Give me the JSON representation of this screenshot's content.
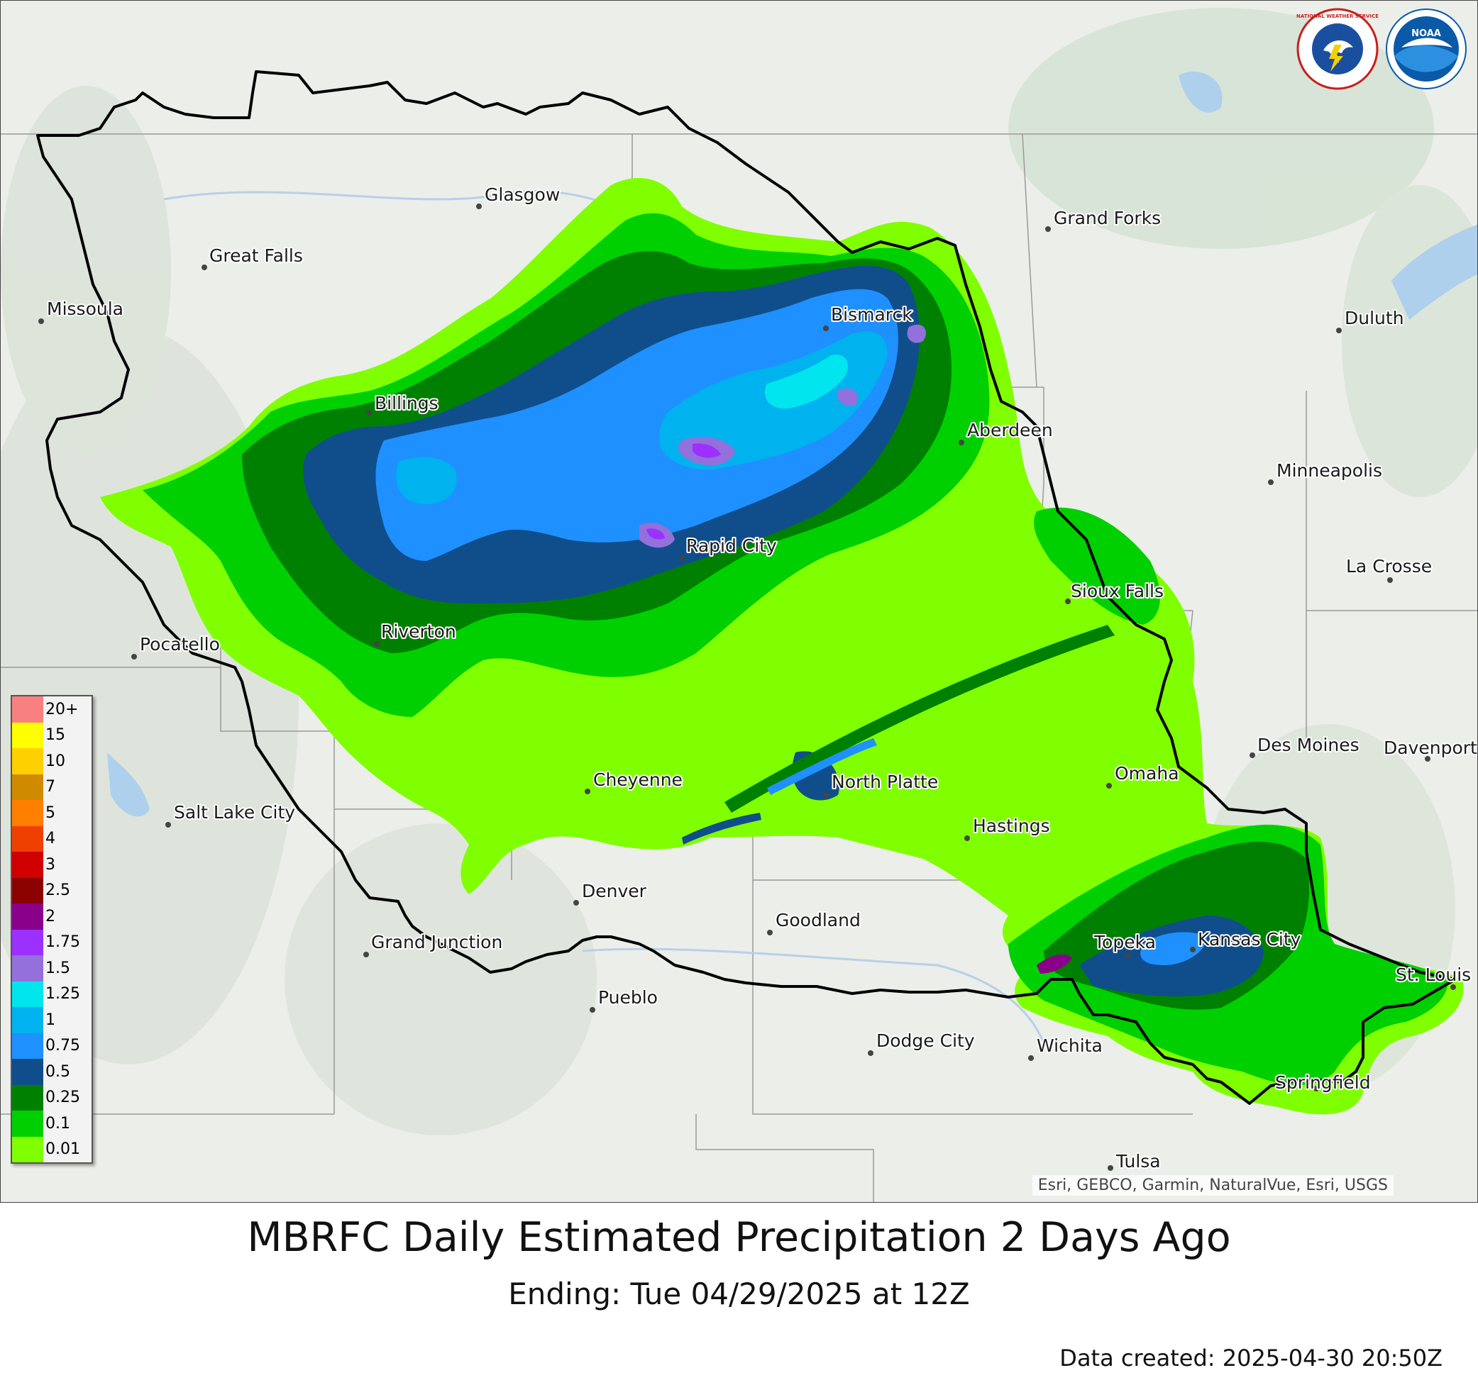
{
  "map": {
    "title": "MBRFC Daily Estimated Precipitation 2 Days Ago",
    "subtitle": "Ending: Tue 04/29/2025 at 12Z",
    "data_created": "Data created: 2025-04-30 20:50Z",
    "attribution": "Esri, GEBCO, Garmin, NaturalVue, Esri, USGS",
    "logos": [
      {
        "name": "nws-logo",
        "text": "NATIONAL WEATHER SERVICE"
      },
      {
        "name": "noaa-logo",
        "text": "NOAA"
      }
    ],
    "cities": [
      {
        "name": "Glasgow"
      },
      {
        "name": "Grand Forks"
      },
      {
        "name": "Great Falls"
      },
      {
        "name": "Missoula"
      },
      {
        "name": "Bismarck"
      },
      {
        "name": "Duluth"
      },
      {
        "name": "Billings"
      },
      {
        "name": "Aberdeen"
      },
      {
        "name": "Minneapolis"
      },
      {
        "name": "Rapid City"
      },
      {
        "name": "La Crosse"
      },
      {
        "name": "Sioux Falls"
      },
      {
        "name": "Riverton"
      },
      {
        "name": "Pocatello"
      },
      {
        "name": "Des Moines"
      },
      {
        "name": "Davenport"
      },
      {
        "name": "Cheyenne"
      },
      {
        "name": "North Platte"
      },
      {
        "name": "Omaha"
      },
      {
        "name": "Salt Lake City"
      },
      {
        "name": "Hastings"
      },
      {
        "name": "Denver"
      },
      {
        "name": "Goodland"
      },
      {
        "name": "Topeka"
      },
      {
        "name": "Kansas City"
      },
      {
        "name": "Grand Junction"
      },
      {
        "name": "St. Louis"
      },
      {
        "name": "Pueblo"
      },
      {
        "name": "Dodge City"
      },
      {
        "name": "Wichita"
      },
      {
        "name": "Springfield"
      },
      {
        "name": "Tulsa"
      }
    ],
    "legend": [
      {
        "label": "20+",
        "color": "#f88080"
      },
      {
        "label": "15",
        "color": "#ffff00"
      },
      {
        "label": "10",
        "color": "#ffd000"
      },
      {
        "label": "7",
        "color": "#d08a00"
      },
      {
        "label": "5",
        "color": "#ff7f00"
      },
      {
        "label": "4",
        "color": "#ee4000"
      },
      {
        "label": "3",
        "color": "#d00000"
      },
      {
        "label": "2.5",
        "color": "#8b0000"
      },
      {
        "label": "2",
        "color": "#8b008b"
      },
      {
        "label": "1.75",
        "color": "#9b30ff"
      },
      {
        "label": "1.5",
        "color": "#9370db"
      },
      {
        "label": "1.25",
        "color": "#00e5ee"
      },
      {
        "label": "1",
        "color": "#00b2ee"
      },
      {
        "label": "0.75",
        "color": "#1e90ff"
      },
      {
        "label": "0.5",
        "color": "#104e8b"
      },
      {
        "label": "0.25",
        "color": "#008000"
      },
      {
        "label": "0.1",
        "color": "#00d000"
      },
      {
        "label": "0.01",
        "color": "#80ff00"
      }
    ]
  }
}
